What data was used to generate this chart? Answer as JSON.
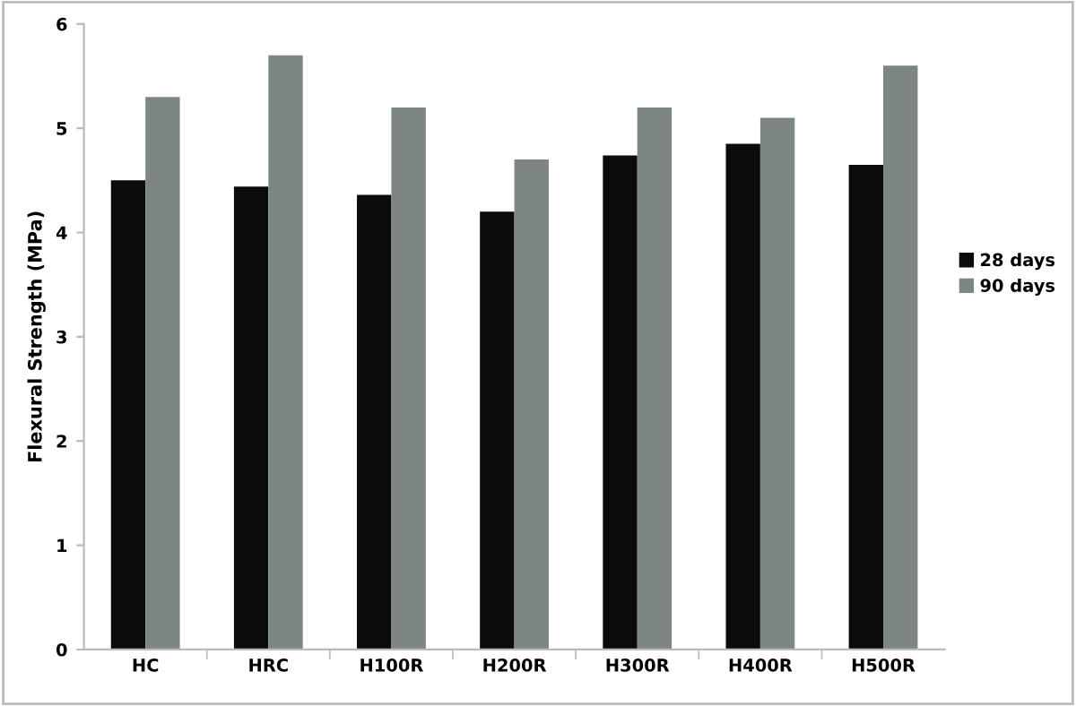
{
  "chart_data": {
    "type": "bar",
    "ylabel": "Flexural Strength (MPa)",
    "categories": [
      "HC",
      "HRC",
      "H100R",
      "H200R",
      "H300R",
      "H400R",
      "H500R"
    ],
    "series": [
      {
        "name": "28 days",
        "color": "#0b0b0b",
        "values": [
          4.5,
          4.44,
          4.36,
          4.2,
          4.74,
          4.85,
          4.65
        ]
      },
      {
        "name": "90 days",
        "color": "#7d8585",
        "values": [
          5.3,
          5.7,
          5.2,
          4.7,
          5.2,
          5.1,
          5.6
        ]
      }
    ],
    "ylim": [
      0,
      6
    ],
    "yticks": [
      0,
      1,
      2,
      3,
      4,
      5,
      6
    ],
    "grid": false,
    "legend": "right"
  }
}
